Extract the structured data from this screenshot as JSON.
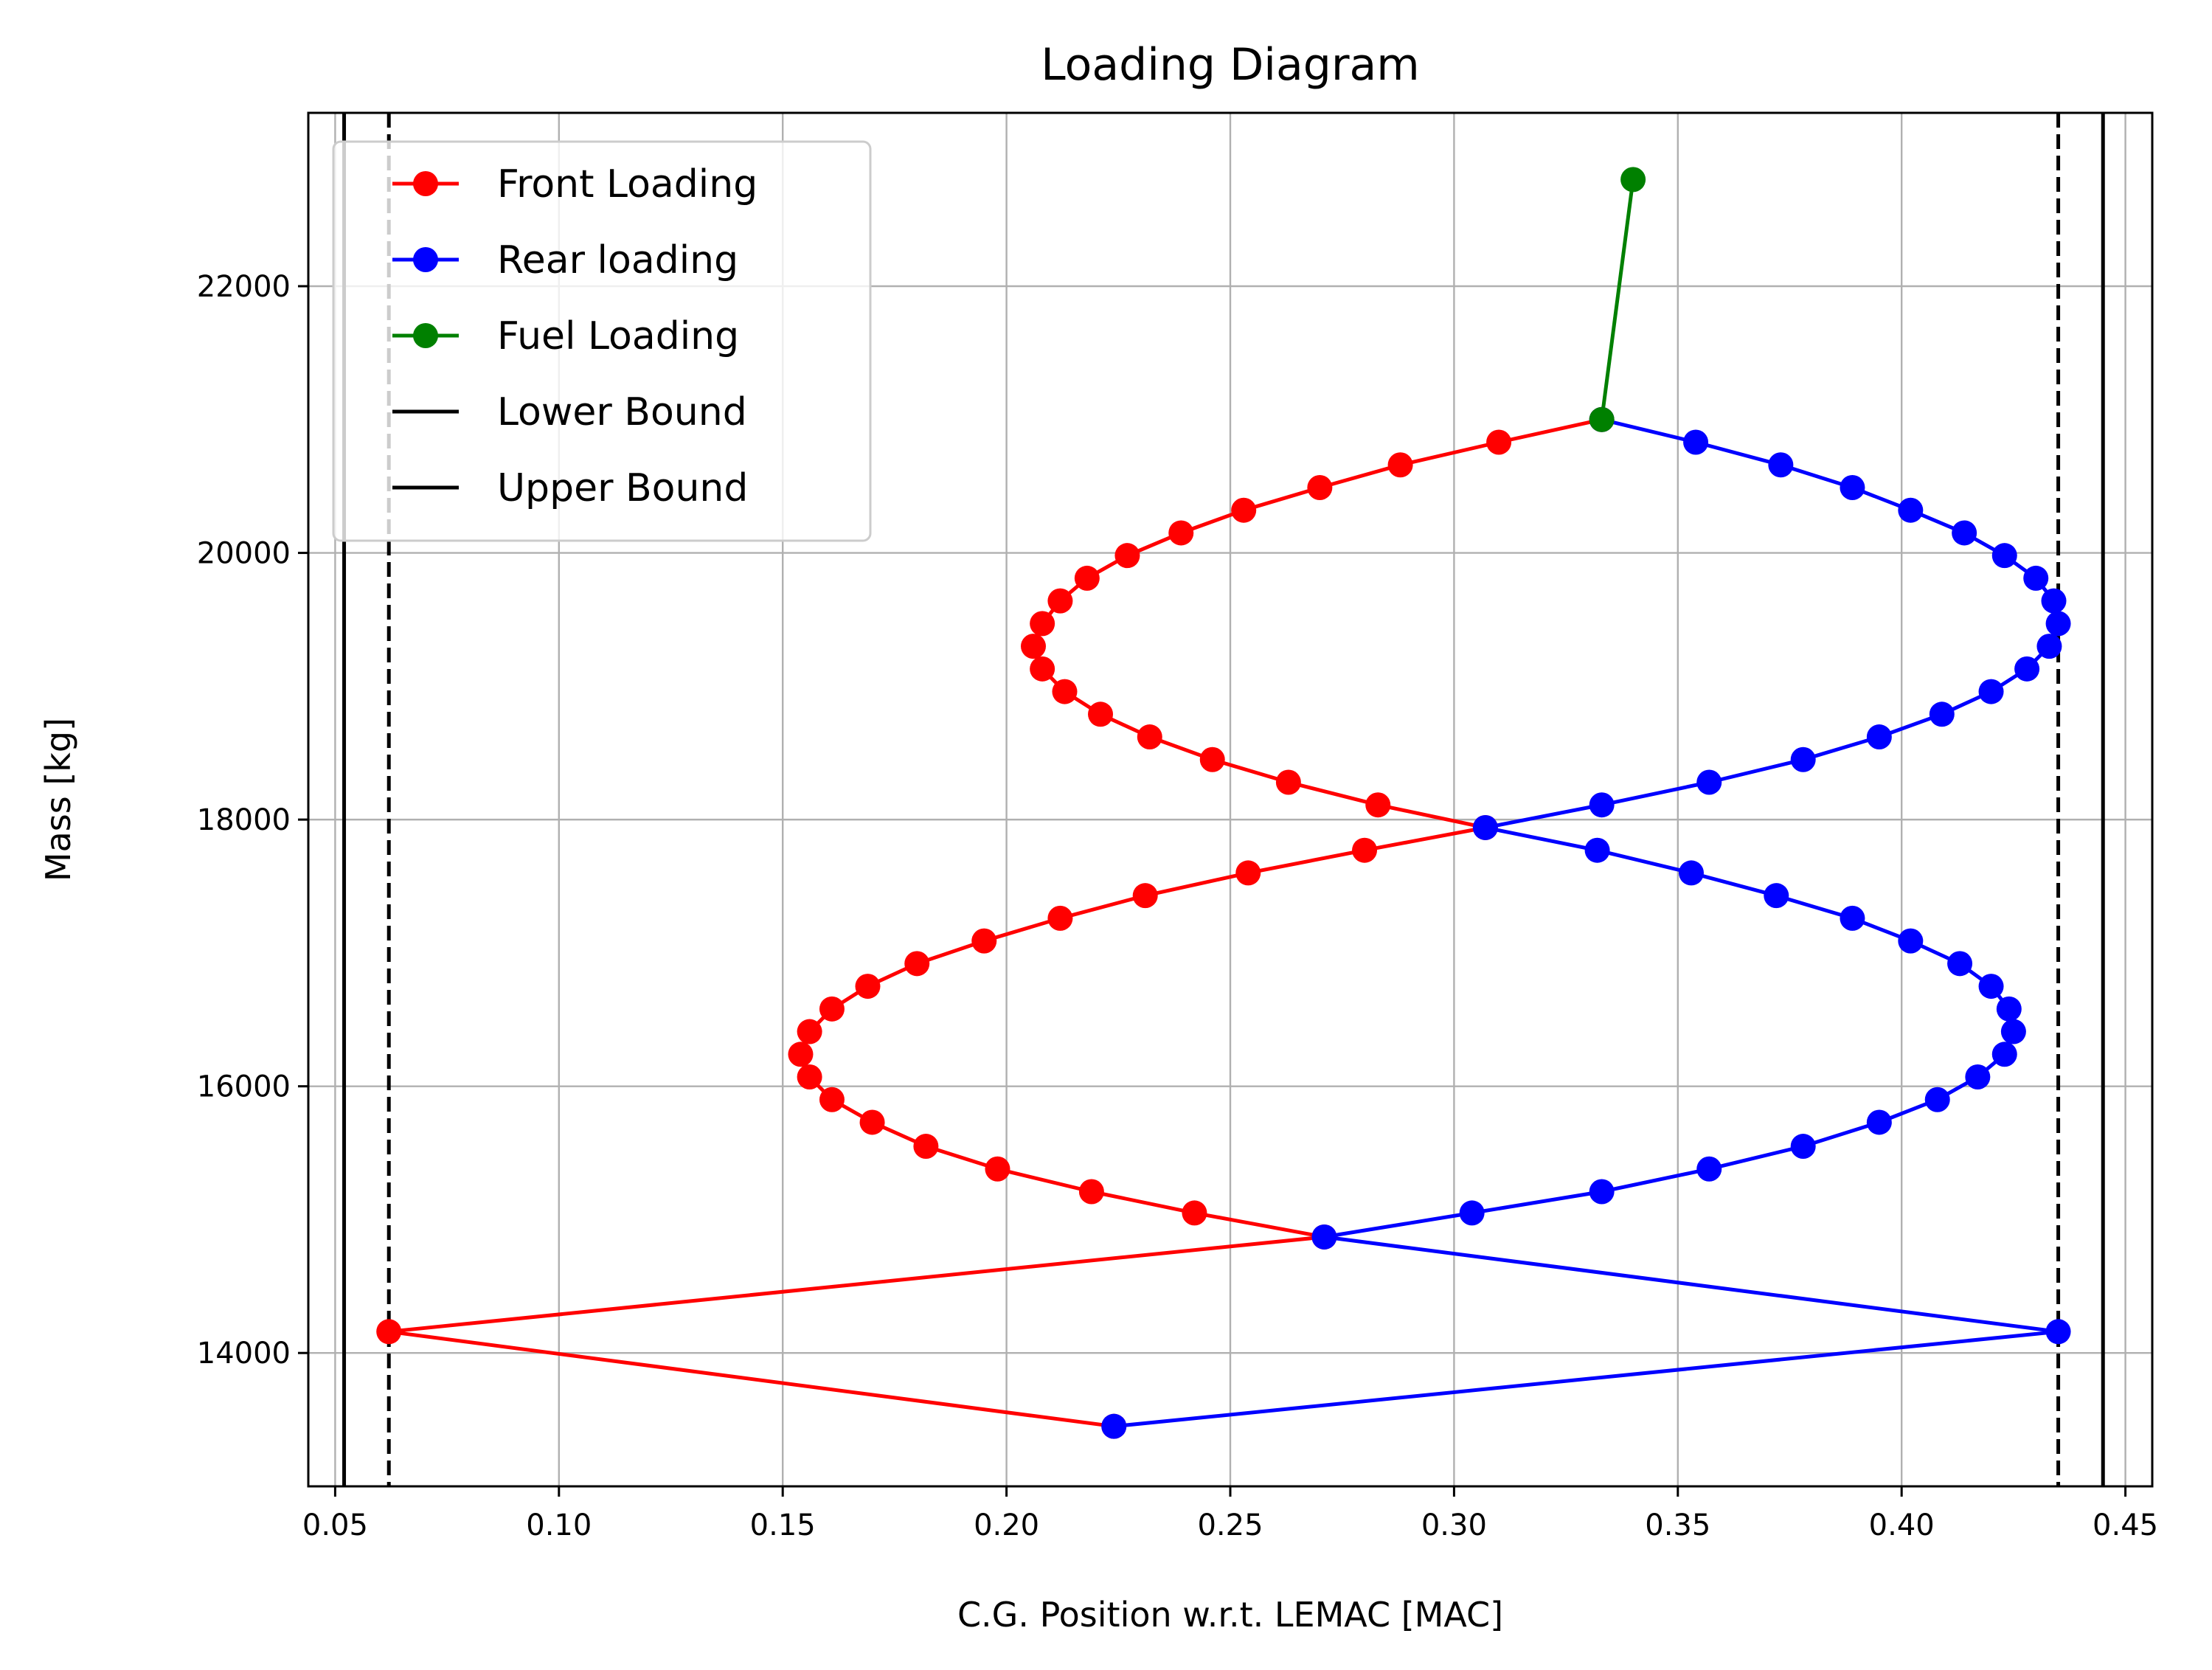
{
  "chart_data": {
    "type": "line",
    "title": "Loading Diagram",
    "xlabel": "C.G. Position w.r.t. LEMAC [MAC]",
    "ylabel": "Mass [kg]",
    "xlim": [
      0.044,
      0.456
    ],
    "ylim": [
      13000,
      23300
    ],
    "xticks": [
      "0.05",
      "0.10",
      "0.15",
      "0.20",
      "0.25",
      "0.30",
      "0.35",
      "0.40",
      "0.45"
    ],
    "yticks": [
      "14000",
      "16000",
      "18000",
      "20000",
      "22000"
    ],
    "grid": true,
    "legend_position": "top-left",
    "series": [
      {
        "name": "Front Loading",
        "color": "#ff0000",
        "marker": "circle",
        "points": [
          [
            0.224,
            13450
          ],
          [
            0.062,
            14160
          ],
          [
            0.271,
            14870
          ],
          [
            0.242,
            15050
          ],
          [
            0.219,
            15210
          ],
          [
            0.198,
            15380
          ],
          [
            0.182,
            15550
          ],
          [
            0.17,
            15730
          ],
          [
            0.161,
            15900
          ],
          [
            0.156,
            16070
          ],
          [
            0.154,
            16240
          ],
          [
            0.156,
            16410
          ],
          [
            0.161,
            16580
          ],
          [
            0.169,
            16750
          ],
          [
            0.18,
            16920
          ],
          [
            0.195,
            17090
          ],
          [
            0.212,
            17260
          ],
          [
            0.231,
            17430
          ],
          [
            0.254,
            17600
          ],
          [
            0.28,
            17770
          ],
          [
            0.307,
            17940
          ],
          [
            0.283,
            18110
          ],
          [
            0.263,
            18280
          ],
          [
            0.246,
            18450
          ],
          [
            0.232,
            18620
          ],
          [
            0.221,
            18790
          ],
          [
            0.213,
            18960
          ],
          [
            0.208,
            19130
          ],
          [
            0.206,
            19300
          ],
          [
            0.208,
            19470
          ],
          [
            0.212,
            19640
          ],
          [
            0.218,
            19810
          ],
          [
            0.227,
            19980
          ],
          [
            0.239,
            20150
          ],
          [
            0.253,
            20320
          ],
          [
            0.27,
            20490
          ],
          [
            0.288,
            20660
          ],
          [
            0.31,
            20830
          ],
          [
            0.333,
            21000
          ]
        ]
      },
      {
        "name": "Rear loading",
        "color": "#0000ff",
        "marker": "circle",
        "points": [
          [
            0.224,
            13450
          ],
          [
            0.435,
            14160
          ],
          [
            0.271,
            14870
          ],
          [
            0.304,
            15050
          ],
          [
            0.333,
            15210
          ],
          [
            0.357,
            15380
          ],
          [
            0.378,
            15550
          ],
          [
            0.395,
            15730
          ],
          [
            0.408,
            15900
          ],
          [
            0.417,
            16070
          ],
          [
            0.423,
            16240
          ],
          [
            0.425,
            16410
          ],
          [
            0.424,
            16580
          ],
          [
            0.42,
            16750
          ],
          [
            0.413,
            16920
          ],
          [
            0.402,
            17090
          ],
          [
            0.389,
            17260
          ],
          [
            0.372,
            17430
          ],
          [
            0.353,
            17600
          ],
          [
            0.332,
            17770
          ],
          [
            0.307,
            17940
          ],
          [
            0.333,
            18110
          ],
          [
            0.357,
            18280
          ],
          [
            0.378,
            18450
          ],
          [
            0.395,
            18620
          ],
          [
            0.409,
            18790
          ],
          [
            0.42,
            18960
          ],
          [
            0.428,
            19130
          ],
          [
            0.433,
            19300
          ],
          [
            0.435,
            19470
          ],
          [
            0.434,
            19640
          ],
          [
            0.43,
            19810
          ],
          [
            0.423,
            19980
          ],
          [
            0.414,
            20150
          ],
          [
            0.402,
            20320
          ],
          [
            0.389,
            20490
          ],
          [
            0.373,
            20660
          ],
          [
            0.354,
            20830
          ],
          [
            0.333,
            21000
          ]
        ]
      },
      {
        "name": "Fuel Loading",
        "color": "#008000",
        "marker": "circle",
        "points": [
          [
            0.333,
            21000
          ],
          [
            0.34,
            22800
          ]
        ]
      },
      {
        "name": "Lower Bound",
        "color": "#000000",
        "marker": "none",
        "vlines": [
          {
            "x": 0.052,
            "style": "solid"
          },
          {
            "x": 0.062,
            "style": "dashed"
          }
        ]
      },
      {
        "name": "Upper Bound",
        "color": "#000000",
        "marker": "none",
        "vlines": [
          {
            "x": 0.445,
            "style": "solid"
          },
          {
            "x": 0.435,
            "style": "dashed"
          }
        ]
      }
    ]
  }
}
